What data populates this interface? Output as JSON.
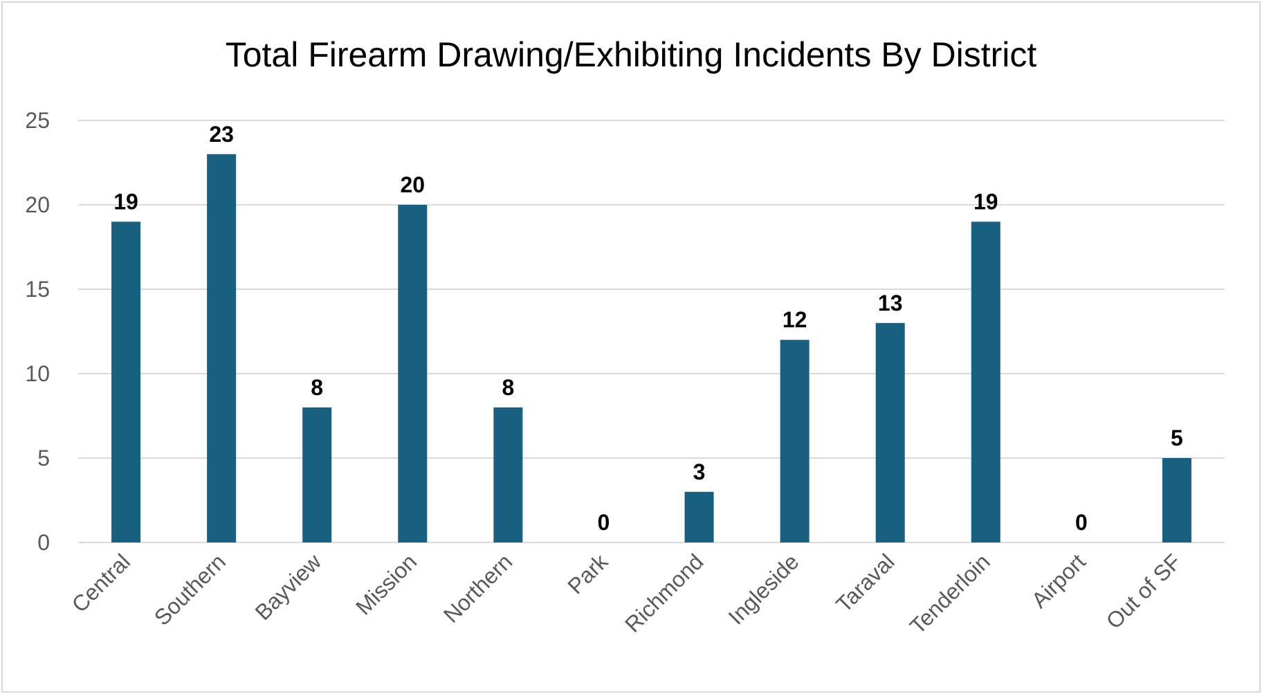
{
  "chart_data": {
    "type": "bar",
    "title": "Total Firearm Drawing/Exhibiting Incidents By District",
    "xlabel": "",
    "ylabel": "",
    "categories": [
      "Central",
      "Southern",
      "Bayview",
      "Mission",
      "Northern",
      "Park",
      "Richmond",
      "Ingleside",
      "Taraval",
      "Tenderloin",
      "Airport",
      "Out of SF"
    ],
    "values": [
      19,
      23,
      8,
      20,
      8,
      0,
      3,
      12,
      13,
      19,
      0,
      5
    ],
    "ylim": [
      0,
      25
    ],
    "yticks": [
      0,
      5,
      10,
      15,
      20,
      25
    ],
    "grid": true,
    "legend": "none",
    "data_labels": true,
    "colors": {
      "bar": "#17607f",
      "grid": "#d9d9d9",
      "tick_text": "#595959",
      "label_text": "#000000",
      "border": "#d9d9d9"
    }
  }
}
